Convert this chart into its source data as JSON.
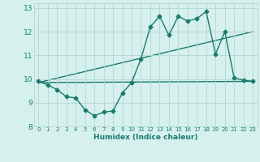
{
  "x": [
    0,
    1,
    2,
    3,
    4,
    5,
    6,
    7,
    8,
    9,
    10,
    11,
    12,
    13,
    14,
    15,
    16,
    17,
    18,
    19,
    20,
    21,
    22,
    23
  ],
  "line1": [
    9.9,
    9.75,
    9.55,
    9.25,
    9.2,
    8.7,
    8.45,
    8.6,
    8.65,
    9.4,
    9.85,
    10.85,
    12.2,
    12.65,
    11.85,
    12.65,
    12.45,
    12.55,
    12.85,
    11.05,
    12.0,
    10.05,
    9.95,
    9.9
  ],
  "line3_x": [
    0,
    23
  ],
  "line3_y": [
    9.85,
    12.0
  ],
  "line4_x": [
    0,
    23
  ],
  "line4_y": [
    9.85,
    9.9
  ],
  "line_color": "#1a7a6e",
  "bg_color": "#d6f0ee",
  "grid_color": "#b0d8d4",
  "xlabel": "Humidex (Indice chaleur)",
  "xlim": [
    -0.5,
    23.5
  ],
  "ylim": [
    8.0,
    13.2
  ],
  "yticks": [
    8,
    9,
    10,
    11,
    12,
    13
  ],
  "xticks": [
    0,
    1,
    2,
    3,
    4,
    5,
    6,
    7,
    8,
    9,
    10,
    11,
    12,
    13,
    14,
    15,
    16,
    17,
    18,
    19,
    20,
    21,
    22,
    23
  ],
  "marker": "D",
  "markersize": 2.5,
  "linewidth": 1.0
}
